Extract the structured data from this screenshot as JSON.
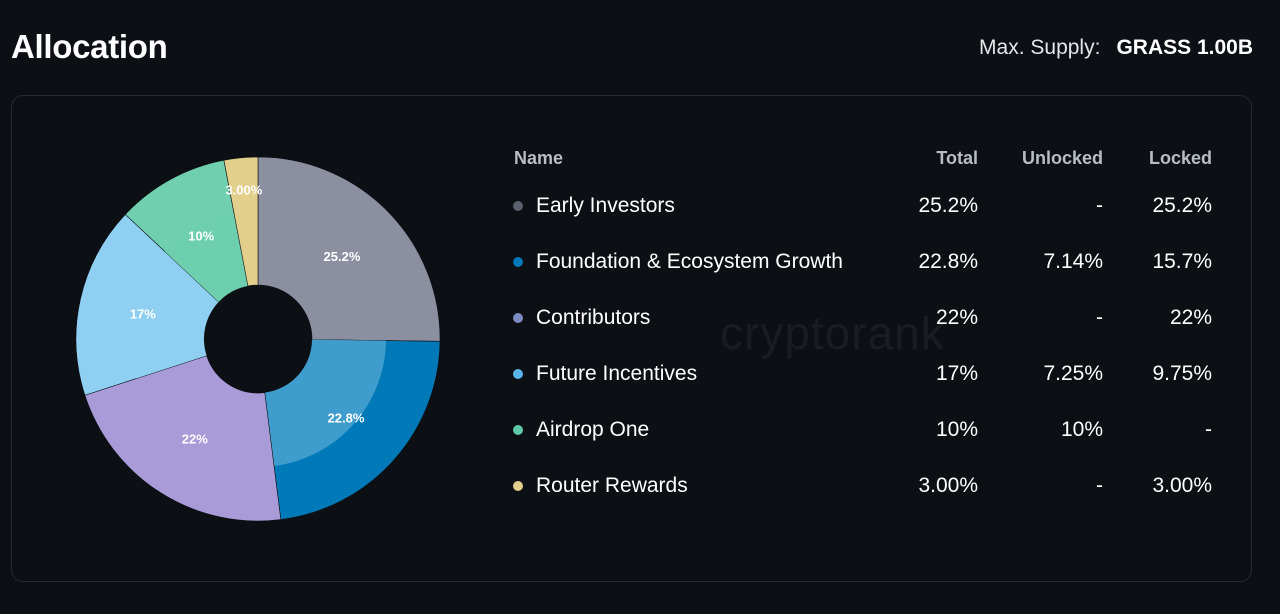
{
  "header": {
    "title": "Allocation",
    "supply_label": "Max. Supply:",
    "supply_value": "GRASS 1.00B"
  },
  "watermark": "cryptorank",
  "table": {
    "columns": [
      "Name",
      "Total",
      "Unlocked",
      "Locked"
    ]
  },
  "chart_data": {
    "type": "pie",
    "title": "",
    "donut": true,
    "categories": [
      "Early Investors",
      "Foundation & Ecosystem Growth",
      "Contributors",
      "Future Incentives",
      "Airdrop One",
      "Router Rewards"
    ],
    "values": [
      25.2,
      22.8,
      22,
      17,
      10,
      3.0
    ],
    "slice_labels": [
      "25.2%",
      "22.8%",
      "22%",
      "17%",
      "10%",
      "3.00%"
    ],
    "total": [
      "25.2%",
      "22.8%",
      "22%",
      "17%",
      "10%",
      "3.00%"
    ],
    "unlocked": [
      "-",
      "7.14%",
      "-",
      "7.25%",
      "10%",
      "-"
    ],
    "locked": [
      "25.2%",
      "15.7%",
      "22%",
      "9.75%",
      "-",
      "3.00%"
    ],
    "unlocked_values": [
      0,
      7.14,
      0,
      7.25,
      10,
      0
    ],
    "colors": [
      "#8b8fa0",
      "#0079b8",
      "#a89bd8",
      "#8fd0f2",
      "#6fcfae",
      "#e3cf8c"
    ],
    "inner_colors": [
      "#8b8fa0",
      "#4aa3d0",
      "#a89bd8",
      "#8fd0f2",
      "#6fcfae",
      "#e3cf8c"
    ],
    "dot_colors": [
      "#5c6170",
      "#0077b6",
      "#7d8cc4",
      "#5ab4ea",
      "#5fc9a5",
      "#e3cf8c"
    ],
    "legend_placement": "right"
  }
}
